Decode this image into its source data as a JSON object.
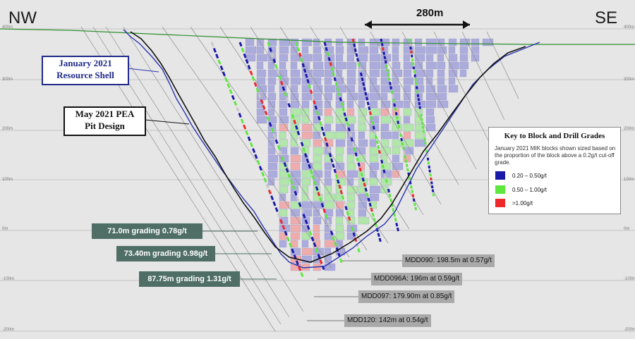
{
  "header": {
    "left_direction": "NW",
    "right_direction": "SE",
    "scale_label": "280m"
  },
  "elevations": [
    "400m",
    "300m",
    "200m",
    "100m",
    "0m",
    "-100m",
    "-200m"
  ],
  "callouts": {
    "resource_shell": [
      "January 2021",
      "Resource Shell"
    ],
    "pit_design": [
      "May 2021 PEA",
      "Pit Design"
    ]
  },
  "grade_intercepts": [
    "71.0m grading 0.78g/t",
    "73.40m grading 0.98g/t",
    "87.75m grading 1.31g/t"
  ],
  "hole_summaries": [
    "MDD090: 198.5m at 0.57g/t",
    "MDD096A: 196m at 0.59g/t",
    "MDD097: 179.90m at 0.85g/t",
    "MDD120: 142m at 0.54g/t"
  ],
  "key": {
    "title": "Key to Block and Drill Grades",
    "description": "January 2021 MIK blocks shown sized based on the proportion of the block above a 0.2g/t cut-off grade.",
    "items": [
      {
        "label": "0.20 – 0.50g/t",
        "color": "#1a1aa8"
      },
      {
        "label": "0.50 – 1.00g/t",
        "color": "#5ee83e"
      },
      {
        "label": ">1.00g/t",
        "color": "#ee2a2a"
      }
    ]
  },
  "colors": {
    "topography": "#2f8f2f",
    "resource_shell": "#2b35b0",
    "pit_design": "#111111",
    "block_low": "#a6a6dc",
    "block_mid": "#aee6a6",
    "block_high": "#f0a8a8",
    "grade_box": "#4f6e66",
    "hole_box": "#a9a9a9"
  }
}
